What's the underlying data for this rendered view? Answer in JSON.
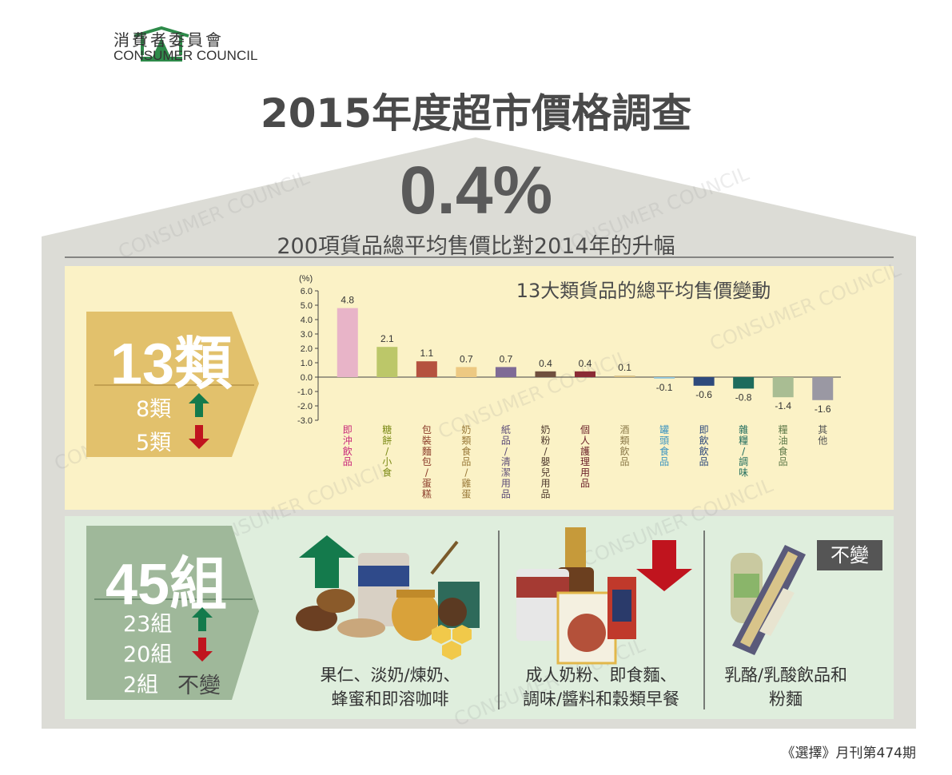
{
  "logo": {
    "name_zh": "消費者委員會",
    "name_en": "CONSUMER COUNCIL"
  },
  "title": "2015年度超市價格調查",
  "headline": {
    "value": "0.4%",
    "caption": "200項貨品總平均售價比對2014年的升幅"
  },
  "categories_summary": {
    "total": "13類",
    "up": "8類",
    "down": "5類"
  },
  "groups_summary": {
    "total": "45組",
    "up": "23組",
    "down": "20組",
    "unchanged_count": "2組",
    "unchanged_label": "不變"
  },
  "group_examples": {
    "up_caption": [
      "果仁、淡奶/煉奶、",
      "蜂蜜和即溶咖啡"
    ],
    "down_caption": [
      "成人奶粉、即食麵、",
      "調味/醬料和穀類早餐"
    ],
    "same_badge": "不變",
    "same_caption": [
      "乳酪/乳酸飲品和",
      "粉麵"
    ]
  },
  "source": "《選擇》月刊第474期",
  "colors": {
    "up": "#147a4c",
    "down": "#c0141e",
    "yellow_panel": "#fbf2c6",
    "green_panel": "#dfeedd",
    "tab_gold": "#e2c16c",
    "tab_green": "#9fb89a"
  },
  "chart_data": {
    "type": "bar",
    "title": "13大類貨品的總平均售價變動",
    "ylabel": "(%)",
    "ylim": [
      -3.0,
      6.0
    ],
    "yticks": [
      "6.0",
      "5.0",
      "4.0",
      "3.0",
      "2.0",
      "1.0",
      "0.0",
      "-1.0",
      "-2.0",
      "-3.0"
    ],
    "categories": [
      "即沖飲品",
      "糖餅/小食",
      "包裝麵包/蛋糕",
      "奶類食品/雞蛋",
      "紙品/清潔用品",
      "奶粉/嬰兒用品",
      "個人護理用品",
      "酒類飲品",
      "罐頭食品",
      "即飲飲品",
      "雜糧/調味",
      "糧油食品",
      "其他"
    ],
    "values": [
      4.8,
      2.1,
      1.1,
      0.7,
      0.7,
      0.4,
      0.4,
      0.1,
      -0.1,
      -0.6,
      -0.8,
      -1.4,
      -1.6
    ],
    "value_labels": [
      "4.8",
      "2.1",
      "1.1",
      "0.7",
      "0.7",
      "0.4",
      "0.4",
      "0.1",
      "-0.1",
      "-0.6",
      "-0.8",
      "-1.4",
      "-1.6"
    ],
    "bar_colors": [
      "#e8b4c8",
      "#bcc769",
      "#b5523f",
      "#edc982",
      "#7f6b96",
      "#6f4f3e",
      "#8a2a35",
      "#d4bd82",
      "#8fc6de",
      "#2e4a7c",
      "#1e6b5c",
      "#a9bd93",
      "#9a98a3"
    ],
    "label_colors": [
      "#c8267a",
      "#7b8a16",
      "#8a3a28",
      "#9a7a3a",
      "#5d4d78",
      "#4f3a2e",
      "#6a1f28",
      "#8c7a4a",
      "#3a93c0",
      "#2e4a7c",
      "#1e6b5c",
      "#5f7a4a",
      "#555555"
    ]
  }
}
